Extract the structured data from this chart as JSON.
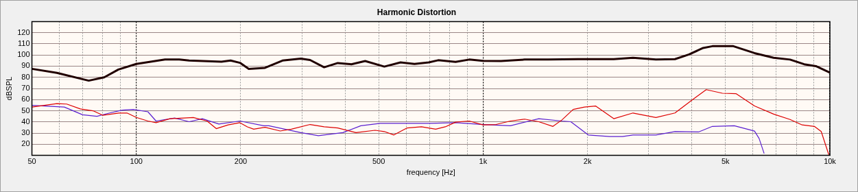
{
  "chart_data": {
    "type": "line",
    "title": "Harmonic Distortion",
    "xlabel": "frequency [Hz]",
    "ylabel": "dBSPL",
    "log": "x",
    "grid": true,
    "marker": "none",
    "line_style": "solid",
    "xlim": [
      50,
      10000
    ],
    "ylim": [
      10,
      130
    ],
    "xticks": [
      50,
      {
        "value": 60,
        "label": null
      },
      {
        "value": 70,
        "label": null
      },
      {
        "value": 80,
        "label": null
      },
      {
        "value": 90,
        "label": null
      },
      100,
      200,
      {
        "value": 300,
        "label": null
      },
      {
        "value": 400,
        "label": null
      },
      500,
      {
        "value": 600,
        "label": null
      },
      {
        "value": 700,
        "label": null
      },
      {
        "value": 800,
        "label": null
      },
      {
        "value": 900,
        "label": null
      },
      {
        "value": 1000,
        "label": "1k"
      },
      {
        "value": 2000,
        "label": "2k"
      },
      {
        "value": 3000,
        "label": null
      },
      {
        "value": 4000,
        "label": null
      },
      {
        "value": 5000,
        "label": "5k"
      },
      {
        "value": 6000,
        "label": null
      },
      {
        "value": 7000,
        "label": null
      },
      {
        "value": 8000,
        "label": null
      },
      {
        "value": 9000,
        "label": null
      },
      {
        "value": 10000,
        "label": "10k"
      }
    ],
    "yticks": [
      20,
      30,
      40,
      50,
      60,
      70,
      80,
      90,
      100,
      110,
      120
    ],
    "series": [
      {
        "color": "#200000",
        "x": [
          50,
          59,
          72.9,
          80.8,
          88.8,
          100,
          110,
          121,
          133,
          142,
          176,
          187,
          199,
          211,
          235,
          264,
          298,
          317,
          348,
          381,
          417,
          457,
          519,
          578,
          634,
          697,
          742,
          833,
          912,
          1000,
          1126,
          1318,
          1542,
          1880,
          2381,
          2705,
          3150,
          3575,
          3925,
          4310,
          4584,
          5268,
          6062,
          6882,
          7676,
          8430,
          9114,
          10000
        ],
        "values": [
          87.6,
          84,
          77,
          80,
          87,
          92,
          94,
          96,
          96,
          95,
          94,
          95,
          93,
          87.5,
          88.5,
          95,
          96.7,
          95.5,
          89,
          92.8,
          91.7,
          94.6,
          89.6,
          93.4,
          92,
          93.4,
          95.3,
          93.8,
          95.9,
          94.8,
          94.6,
          95.9,
          95.9,
          96.3,
          96.3,
          97.5,
          95.9,
          96.3,
          100.5,
          106.3,
          107.9,
          107.9,
          101.7,
          97.5,
          95.9,
          91.7,
          90,
          84.2
        ]
      },
      {
        "color": "#dd0000",
        "x": [
          50,
          59,
          63,
          69,
          75,
          80,
          89,
          94,
          100,
          108,
          114,
          125,
          146,
          160,
          170,
          184,
          199,
          209,
          218,
          235,
          260,
          280,
          317,
          348,
          381,
          430,
          488,
          519,
          553,
          604,
          664,
          730,
          778,
          833,
          912,
          1000,
          1090,
          1199,
          1318,
          1447,
          1590,
          1688,
          1818,
          1960,
          2110,
          2381,
          2705,
          3150,
          3575,
          3960,
          4400,
          4900,
          5370,
          6062,
          6882,
          7676,
          8320,
          9020,
          9440,
          9930
        ],
        "values": [
          53.3,
          56.4,
          56,
          51.6,
          50,
          46,
          48,
          48,
          44,
          40.8,
          39.3,
          42.9,
          43.9,
          40.8,
          34,
          37.3,
          39.3,
          35.6,
          33.5,
          35.2,
          31.9,
          33.5,
          37.7,
          35.6,
          34.6,
          30.4,
          32.5,
          31.4,
          28.3,
          34.6,
          35.6,
          33.5,
          35.6,
          39.8,
          40.8,
          37.3,
          37.7,
          40.8,
          42.5,
          40.2,
          36,
          41.8,
          51.2,
          53.3,
          54.3,
          42.9,
          48,
          43.9,
          48,
          58.5,
          68.9,
          65.7,
          65.3,
          54.3,
          47,
          42.2,
          37.3,
          36,
          31.4,
          10.5
        ]
      },
      {
        "color": "#5a1fd0",
        "x": [
          50,
          62,
          70,
          77,
          83,
          91,
          98,
          108,
          114,
          129,
          142,
          155,
          173,
          199,
          233,
          241,
          298,
          335,
          394,
          444,
          505,
          705,
          833,
          1000,
          1199,
          1447,
          1688,
          1790,
          2010,
          2318,
          2523,
          2705,
          3150,
          3575,
          4180,
          4584,
          5300,
          6062,
          6250,
          6463
        ],
        "values": [
          54.9,
          53.3,
          46.4,
          45,
          47.7,
          50.6,
          51.2,
          49.1,
          40.8,
          43.5,
          40.2,
          42.9,
          38.1,
          40.8,
          36.6,
          36.6,
          30.4,
          27.7,
          30.4,
          36.6,
          38.7,
          38.7,
          39.3,
          37.7,
          36.6,
          42.9,
          40.8,
          40.2,
          28.3,
          26.9,
          26.9,
          28.3,
          28.3,
          31.4,
          31,
          36,
          36.6,
          31.8,
          25.2,
          11.7
        ]
      }
    ]
  }
}
